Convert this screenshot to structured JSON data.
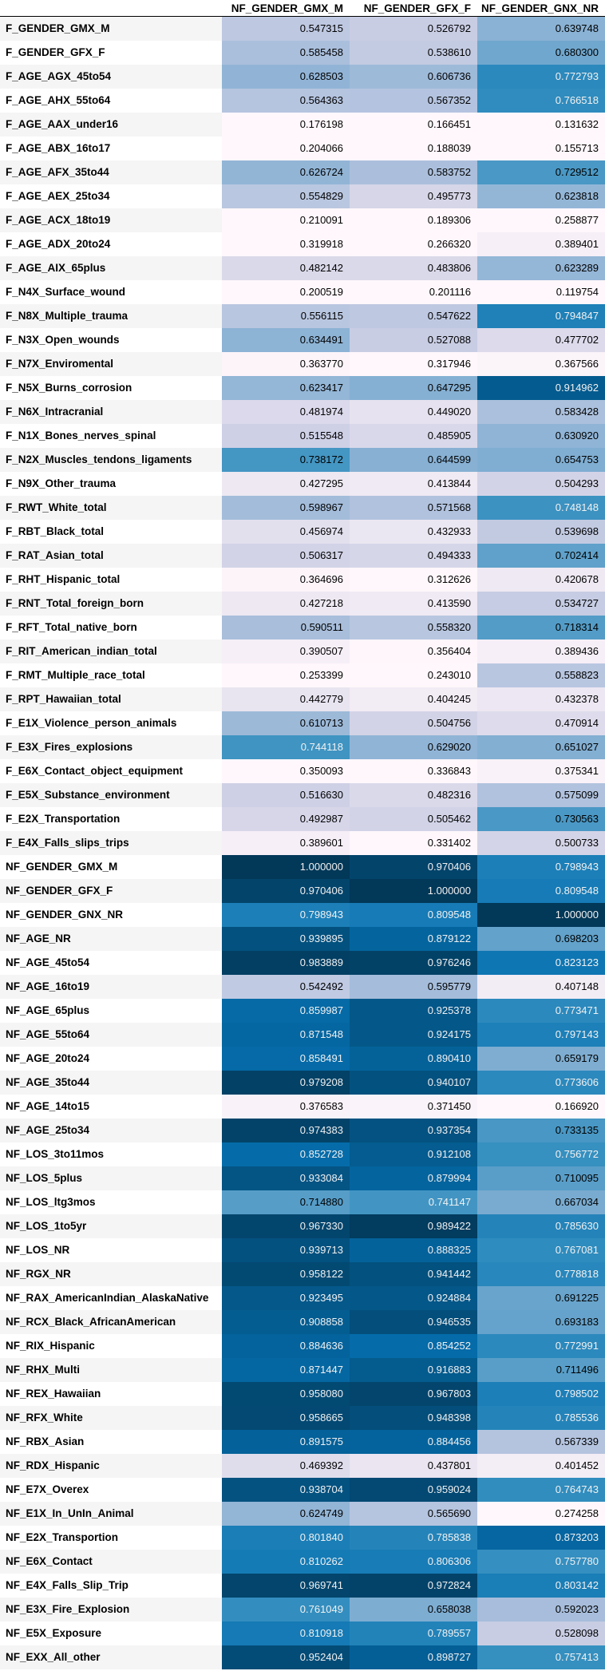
{
  "table": {
    "columns": [
      "NF_GENDER_GMX_M",
      "NF_GENDER_GFX_F",
      "NF_GENDER_GNX_NR"
    ],
    "rows": [
      {
        "label": "F_GENDER_GMX_M",
        "values": [
          "0.547315",
          "0.526792",
          "0.639748"
        ]
      },
      {
        "label": "F_GENDER_GFX_F",
        "values": [
          "0.585458",
          "0.538610",
          "0.680300"
        ]
      },
      {
        "label": "F_AGE_AGX_45to54",
        "values": [
          "0.628503",
          "0.606736",
          "0.772793"
        ]
      },
      {
        "label": "F_AGE_AHX_55to64",
        "values": [
          "0.564363",
          "0.567352",
          "0.766518"
        ]
      },
      {
        "label": "F_AGE_AAX_under16",
        "values": [
          "0.176198",
          "0.166451",
          "0.131632"
        ]
      },
      {
        "label": "F_AGE_ABX_16to17",
        "values": [
          "0.204066",
          "0.188039",
          "0.155713"
        ]
      },
      {
        "label": "F_AGE_AFX_35to44",
        "values": [
          "0.626724",
          "0.583752",
          "0.729512"
        ]
      },
      {
        "label": "F_AGE_AEX_25to34",
        "values": [
          "0.554829",
          "0.495773",
          "0.623818"
        ]
      },
      {
        "label": "F_AGE_ACX_18to19",
        "values": [
          "0.210091",
          "0.189306",
          "0.258877"
        ]
      },
      {
        "label": "F_AGE_ADX_20to24",
        "values": [
          "0.319918",
          "0.266320",
          "0.389401"
        ]
      },
      {
        "label": "F_AGE_AIX_65plus",
        "values": [
          "0.482142",
          "0.483806",
          "0.623289"
        ]
      },
      {
        "label": "F_N4X_Surface_wound",
        "values": [
          "0.200519",
          "0.201116",
          "0.119754"
        ]
      },
      {
        "label": "F_N8X_Multiple_trauma",
        "values": [
          "0.556115",
          "0.547622",
          "0.794847"
        ]
      },
      {
        "label": "F_N3X_Open_wounds",
        "values": [
          "0.634491",
          "0.527088",
          "0.477702"
        ]
      },
      {
        "label": "F_N7X_Enviromental",
        "values": [
          "0.363770",
          "0.317946",
          "0.367566"
        ]
      },
      {
        "label": "F_N5X_Burns_corrosion",
        "values": [
          "0.623417",
          "0.647295",
          "0.914962"
        ]
      },
      {
        "label": "F_N6X_Intracranial",
        "values": [
          "0.481974",
          "0.449020",
          "0.583428"
        ]
      },
      {
        "label": "F_N1X_Bones_nerves_spinal",
        "values": [
          "0.515548",
          "0.485905",
          "0.630920"
        ]
      },
      {
        "label": "F_N2X_Muscles_tendons_ligaments",
        "values": [
          "0.738172",
          "0.644599",
          "0.654753"
        ]
      },
      {
        "label": "F_N9X_Other_trauma",
        "values": [
          "0.427295",
          "0.413844",
          "0.504293"
        ]
      },
      {
        "label": "F_RWT_White_total",
        "values": [
          "0.598967",
          "0.571568",
          "0.748148"
        ]
      },
      {
        "label": "F_RBT_Black_total",
        "values": [
          "0.456974",
          "0.432933",
          "0.539698"
        ]
      },
      {
        "label": "F_RAT_Asian_total",
        "values": [
          "0.506317",
          "0.494333",
          "0.702414"
        ]
      },
      {
        "label": "F_RHT_Hispanic_total",
        "values": [
          "0.364696",
          "0.312626",
          "0.420678"
        ]
      },
      {
        "label": "F_RNT_Total_foreign_born",
        "values": [
          "0.427218",
          "0.413590",
          "0.534727"
        ]
      },
      {
        "label": "F_RFT_Total_native_born",
        "values": [
          "0.590511",
          "0.558320",
          "0.718314"
        ]
      },
      {
        "label": "F_RIT_American_indian_total",
        "values": [
          "0.390507",
          "0.356404",
          "0.389436"
        ]
      },
      {
        "label": "F_RMT_Multiple_race_total",
        "values": [
          "0.253399",
          "0.243010",
          "0.558823"
        ]
      },
      {
        "label": "F_RPT_Hawaiian_total",
        "values": [
          "0.442779",
          "0.404245",
          "0.432378"
        ]
      },
      {
        "label": "F_E1X_Violence_person_animals",
        "values": [
          "0.610713",
          "0.504756",
          "0.470914"
        ]
      },
      {
        "label": "F_E3X_Fires_explosions",
        "values": [
          "0.744118",
          "0.629020",
          "0.651027"
        ]
      },
      {
        "label": "F_E6X_Contact_object_equipment",
        "values": [
          "0.350093",
          "0.336843",
          "0.375341"
        ]
      },
      {
        "label": "F_E5X_Substance_environment",
        "values": [
          "0.516630",
          "0.482316",
          "0.575099"
        ]
      },
      {
        "label": "F_E2X_Transportation",
        "values": [
          "0.492987",
          "0.505462",
          "0.730563"
        ]
      },
      {
        "label": "F_E4X_Falls_slips_trips",
        "values": [
          "0.389601",
          "0.331402",
          "0.500733"
        ]
      },
      {
        "label": "NF_GENDER_GMX_M",
        "values": [
          "1.000000",
          "0.970406",
          "0.798943"
        ]
      },
      {
        "label": "NF_GENDER_GFX_F",
        "values": [
          "0.970406",
          "1.000000",
          "0.809548"
        ]
      },
      {
        "label": "NF_GENDER_GNX_NR",
        "values": [
          "0.798943",
          "0.809548",
          "1.000000"
        ]
      },
      {
        "label": "NF_AGE_NR",
        "values": [
          "0.939895",
          "0.879122",
          "0.698203"
        ]
      },
      {
        "label": "NF_AGE_45to54",
        "values": [
          "0.983889",
          "0.976246",
          "0.823123"
        ]
      },
      {
        "label": "NF_AGE_16to19",
        "values": [
          "0.542492",
          "0.595779",
          "0.407148"
        ]
      },
      {
        "label": "NF_AGE_65plus",
        "values": [
          "0.859987",
          "0.925378",
          "0.773471"
        ]
      },
      {
        "label": "NF_AGE_55to64",
        "values": [
          "0.871548",
          "0.924175",
          "0.797143"
        ]
      },
      {
        "label": "NF_AGE_20to24",
        "values": [
          "0.858491",
          "0.890410",
          "0.659179"
        ]
      },
      {
        "label": "NF_AGE_35to44",
        "values": [
          "0.979208",
          "0.940107",
          "0.773606"
        ]
      },
      {
        "label": "NF_AGE_14to15",
        "values": [
          "0.376583",
          "0.371450",
          "0.166920"
        ]
      },
      {
        "label": "NF_AGE_25to34",
        "values": [
          "0.974383",
          "0.937354",
          "0.733135"
        ]
      },
      {
        "label": "NF_LOS_3to11mos",
        "values": [
          "0.852728",
          "0.912108",
          "0.756772"
        ]
      },
      {
        "label": "NF_LOS_5plus",
        "values": [
          "0.933084",
          "0.879994",
          "0.710095"
        ]
      },
      {
        "label": "NF_LOS_ltg3mos",
        "values": [
          "0.714880",
          "0.741147",
          "0.667034"
        ]
      },
      {
        "label": "NF_LOS_1to5yr",
        "values": [
          "0.967330",
          "0.989422",
          "0.785630"
        ]
      },
      {
        "label": "NF_LOS_NR",
        "values": [
          "0.939713",
          "0.888325",
          "0.767081"
        ]
      },
      {
        "label": "NF_RGX_NR",
        "values": [
          "0.958122",
          "0.941442",
          "0.778818"
        ]
      },
      {
        "label": "NF_RAX_AmericanIndian_AlaskaNative",
        "values": [
          "0.923495",
          "0.924884",
          "0.691225"
        ]
      },
      {
        "label": "NF_RCX_Black_AfricanAmerican",
        "values": [
          "0.908858",
          "0.946535",
          "0.693183"
        ]
      },
      {
        "label": "NF_RIX_Hispanic",
        "values": [
          "0.884636",
          "0.854252",
          "0.772991"
        ]
      },
      {
        "label": "NF_RHX_Multi",
        "values": [
          "0.871447",
          "0.916883",
          "0.711496"
        ]
      },
      {
        "label": "NF_REX_Hawaiian",
        "values": [
          "0.958080",
          "0.967803",
          "0.798502"
        ]
      },
      {
        "label": "NF_RFX_White",
        "values": [
          "0.958665",
          "0.948398",
          "0.785536"
        ]
      },
      {
        "label": "NF_RBX_Asian",
        "values": [
          "0.891575",
          "0.884456",
          "0.567339"
        ]
      },
      {
        "label": "NF_RDX_Hispanic",
        "values": [
          "0.469392",
          "0.437801",
          "0.401452"
        ]
      },
      {
        "label": "NF_E7X_Overex",
        "values": [
          "0.938704",
          "0.959024",
          "0.764743"
        ]
      },
      {
        "label": "NF_E1X_In_UnIn_Animal",
        "values": [
          "0.624749",
          "0.565690",
          "0.274258"
        ]
      },
      {
        "label": "NF_E2X_Transportion",
        "values": [
          "0.801840",
          "0.785838",
          "0.873203"
        ]
      },
      {
        "label": "NF_E6X_Contact",
        "values": [
          "0.810262",
          "0.806306",
          "0.757780"
        ]
      },
      {
        "label": "NF_E4X_Falls_Slip_Trip",
        "values": [
          "0.969741",
          "0.972824",
          "0.803142"
        ]
      },
      {
        "label": "NF_E3X_Fire_Explosion",
        "values": [
          "0.761049",
          "0.658038",
          "0.592023"
        ]
      },
      {
        "label": "NF_E5X_Exposure",
        "values": [
          "0.810918",
          "0.789557",
          "0.528098"
        ]
      },
      {
        "label": "NF_EXX_All_other",
        "values": [
          "0.952404",
          "0.898727",
          "0.757413"
        ]
      }
    ]
  }
}
